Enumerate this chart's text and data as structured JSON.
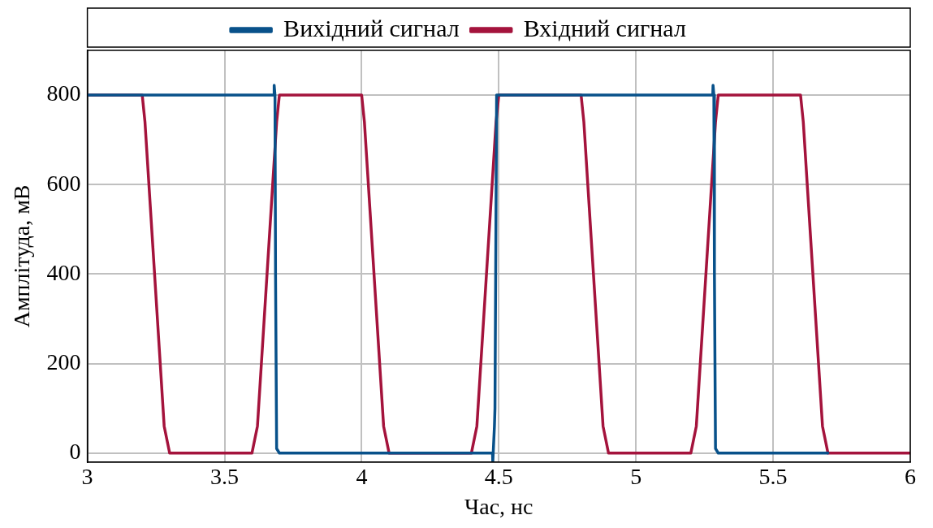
{
  "chart_data": {
    "type": "line",
    "xlabel": "Час, нс",
    "ylabel": "Амплітуда, мВ",
    "xlim": [
      3,
      6
    ],
    "ylim": [
      -20,
      900
    ],
    "xticks": [
      3,
      3.5,
      4,
      4.5,
      5,
      5.5,
      6
    ],
    "yticks": [
      0,
      200,
      400,
      600,
      800
    ],
    "grid": true,
    "legend": "top",
    "marker": "none",
    "line_style": "solid",
    "series": [
      {
        "name": "Вихідний сигнал",
        "color": "#08518a",
        "x": [
          3,
          3.68,
          3.681,
          3.684,
          3.686,
          3.69,
          3.7,
          4.477,
          4.478,
          4.484,
          4.486,
          4.492,
          4.5,
          5.28,
          5.281,
          5.284,
          5.286,
          5.29,
          5.3,
          5.7
        ],
        "values": [
          800,
          800,
          822,
          800,
          400,
          10,
          0,
          0,
          -20,
          60,
          100,
          800,
          800,
          800,
          822,
          800,
          400,
          10,
          0,
          0
        ]
      },
      {
        "name": "Вхідний сигнал",
        "color": "#a4133c",
        "x": [
          3,
          3.2,
          3.21,
          3.28,
          3.3,
          3.6,
          3.62,
          3.69,
          3.7,
          4.0,
          4.01,
          4.08,
          4.1,
          4.4,
          4.42,
          4.49,
          4.5,
          4.8,
          4.81,
          4.88,
          4.9,
          5.2,
          5.22,
          5.29,
          5.3,
          5.6,
          5.61,
          5.68,
          5.7,
          6
        ],
        "values": [
          800,
          800,
          740,
          60,
          0,
          0,
          60,
          740,
          800,
          800,
          740,
          60,
          0,
          0,
          60,
          740,
          800,
          800,
          740,
          60,
          0,
          0,
          60,
          740,
          800,
          800,
          740,
          60,
          0,
          0
        ]
      }
    ]
  }
}
